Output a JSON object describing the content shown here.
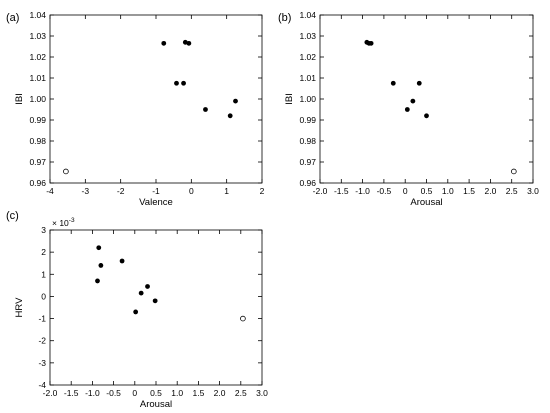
{
  "chart_data": [
    {
      "panel": "(a)",
      "type": "scatter",
      "xlabel": "Valence",
      "ylabel": "IBI",
      "xlim": [
        -4,
        2
      ],
      "ylim": [
        0.96,
        1.04
      ],
      "xticks": [
        "-4",
        "-3",
        "-2",
        "-1",
        "0",
        "1",
        "2"
      ],
      "yticks": [
        "0.96",
        "0.97",
        "0.98",
        "0.99",
        "1.00",
        "1.01",
        "1.02",
        "1.03",
        "1.04"
      ],
      "xtick_values": [
        -4,
        -3,
        -2,
        -1,
        0,
        1,
        2
      ],
      "ytick_values": [
        0.96,
        0.97,
        0.98,
        0.99,
        1.0,
        1.01,
        1.02,
        1.03,
        1.04
      ],
      "points_filled": [
        {
          "x": -0.78,
          "y": 1.0265
        },
        {
          "x": -0.17,
          "y": 1.027
        },
        {
          "x": -0.07,
          "y": 1.0265
        },
        {
          "x": -0.42,
          "y": 1.0075
        },
        {
          "x": -0.22,
          "y": 1.0075
        },
        {
          "x": 0.4,
          "y": 0.995
        },
        {
          "x": 1.1,
          "y": 0.992
        },
        {
          "x": 1.25,
          "y": 0.999
        }
      ],
      "points_open": [
        {
          "x": -3.55,
          "y": 0.9655
        }
      ]
    },
    {
      "panel": "(b)",
      "type": "scatter",
      "xlabel": "Arousal",
      "ylabel": "IBI",
      "xlim": [
        -2.0,
        3.0
      ],
      "ylim": [
        0.96,
        1.04
      ],
      "xticks": [
        "-2.0",
        "-1.5",
        "-1.0",
        "-0.5",
        "0",
        "0.5",
        "1.0",
        "1.5",
        "2.0",
        "2.5",
        "3.0"
      ],
      "yticks": [
        "0.96",
        "0.97",
        "0.98",
        "0.99",
        "1.00",
        "1.01",
        "1.02",
        "1.03",
        "1.04"
      ],
      "xtick_values": [
        -2.0,
        -1.5,
        -1.0,
        -0.5,
        0,
        0.5,
        1.0,
        1.5,
        2.0,
        2.5,
        3.0
      ],
      "ytick_values": [
        0.96,
        0.97,
        0.98,
        0.99,
        1.0,
        1.01,
        1.02,
        1.03,
        1.04
      ],
      "points_filled": [
        {
          "x": -0.9,
          "y": 1.027
        },
        {
          "x": -0.85,
          "y": 1.0265
        },
        {
          "x": -0.8,
          "y": 1.0265
        },
        {
          "x": -0.28,
          "y": 1.0075
        },
        {
          "x": 0.33,
          "y": 1.0075
        },
        {
          "x": 0.18,
          "y": 0.999
        },
        {
          "x": 0.05,
          "y": 0.995
        },
        {
          "x": 0.5,
          "y": 0.992
        }
      ],
      "points_open": [
        {
          "x": 2.55,
          "y": 0.9655
        }
      ]
    },
    {
      "panel": "(c)",
      "type": "scatter",
      "xlabel": "Arousal",
      "ylabel": "HRV",
      "y_scale_note": "× 10",
      "y_scale_exp": "-3",
      "xlim": [
        -2.0,
        3.0
      ],
      "ylim": [
        -4,
        3
      ],
      "xticks": [
        "-2.0",
        "-1.5",
        "-1.0",
        "-0.5",
        "0",
        "0.5",
        "1.0",
        "1.5",
        "2.0",
        "2.5",
        "3.0"
      ],
      "yticks": [
        "-4",
        "-3",
        "-2",
        "-1",
        "0",
        "1",
        "2",
        "3"
      ],
      "xtick_values": [
        -2.0,
        -1.5,
        -1.0,
        -0.5,
        0,
        0.5,
        1.0,
        1.5,
        2.0,
        2.5,
        3.0
      ],
      "ytick_values": [
        -4,
        -3,
        -2,
        -1,
        0,
        1,
        2,
        3
      ],
      "points_filled": [
        {
          "x": -0.85,
          "y": 2.2
        },
        {
          "x": -0.8,
          "y": 1.4
        },
        {
          "x": -0.88,
          "y": 0.7
        },
        {
          "x": -0.3,
          "y": 1.6
        },
        {
          "x": 0.3,
          "y": 0.45
        },
        {
          "x": 0.15,
          "y": 0.15
        },
        {
          "x": 0.48,
          "y": -0.2
        },
        {
          "x": 0.02,
          "y": -0.7
        }
      ],
      "points_open": [
        {
          "x": 2.55,
          "y": -1.0
        }
      ]
    }
  ]
}
